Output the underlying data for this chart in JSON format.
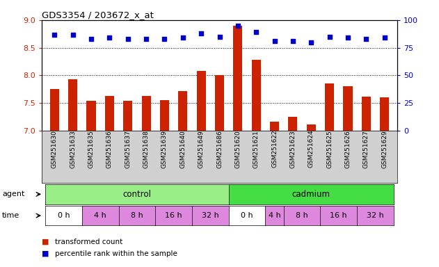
{
  "title": "GDS3354 / 203672_x_at",
  "samples": [
    "GSM251630",
    "GSM251633",
    "GSM251635",
    "GSM251636",
    "GSM251637",
    "GSM251638",
    "GSM251639",
    "GSM251640",
    "GSM251649",
    "GSM251686",
    "GSM251620",
    "GSM251621",
    "GSM251622",
    "GSM251623",
    "GSM251624",
    "GSM251625",
    "GSM251626",
    "GSM251627",
    "GSM251629"
  ],
  "bar_values": [
    7.75,
    7.93,
    7.54,
    7.63,
    7.54,
    7.63,
    7.55,
    7.72,
    8.08,
    8.01,
    8.9,
    8.28,
    7.17,
    7.25,
    7.12,
    7.85,
    7.8,
    7.62,
    7.6
  ],
  "percentile_values": [
    87,
    87,
    83,
    84,
    83,
    83,
    83,
    84,
    88,
    85,
    95,
    89,
    81,
    81,
    80,
    85,
    84,
    83,
    84
  ],
  "bar_color": "#cc2200",
  "dot_color": "#0000cc",
  "ylim_left": [
    7.0,
    9.0
  ],
  "ylim_right": [
    0,
    100
  ],
  "yticks_left": [
    7.0,
    7.5,
    8.0,
    8.5,
    9.0
  ],
  "yticks_right": [
    0,
    25,
    50,
    75,
    100
  ],
  "grid_lines": [
    7.5,
    8.0,
    8.5
  ],
  "agent_label_control": "control",
  "agent_label_cadmium": "cadmium",
  "control_color": "#99ee88",
  "cadmium_color": "#44dd44",
  "time_groups_ctrl": [
    [
      "0 h",
      -0.5,
      1.5,
      "white"
    ],
    [
      "4 h",
      1.5,
      3.5,
      "pink"
    ],
    [
      "8 h",
      3.5,
      5.5,
      "pink"
    ],
    [
      "16 h",
      5.5,
      7.5,
      "pink"
    ],
    [
      "32 h",
      7.5,
      9.5,
      "pink"
    ]
  ],
  "time_groups_cad": [
    [
      "0 h",
      9.5,
      11.5,
      "white"
    ],
    [
      "4 h",
      11.5,
      12.5,
      "pink"
    ],
    [
      "8 h",
      12.5,
      14.5,
      "pink"
    ],
    [
      "16 h",
      14.5,
      16.5,
      "pink"
    ],
    [
      "32 h",
      16.5,
      18.5,
      "pink"
    ]
  ],
  "time_color_white": "#ffffff",
  "time_color_pink": "#dd88dd",
  "legend_bar_label": "transformed count",
  "legend_dot_label": "percentile rank within the sample",
  "tick_label_color_left": "#cc2200",
  "tick_label_color_right": "#0000cc",
  "xlim": [
    -0.7,
    18.7
  ],
  "bar_width": 0.5,
  "figsize": [
    6.31,
    3.84
  ],
  "dpi": 100
}
